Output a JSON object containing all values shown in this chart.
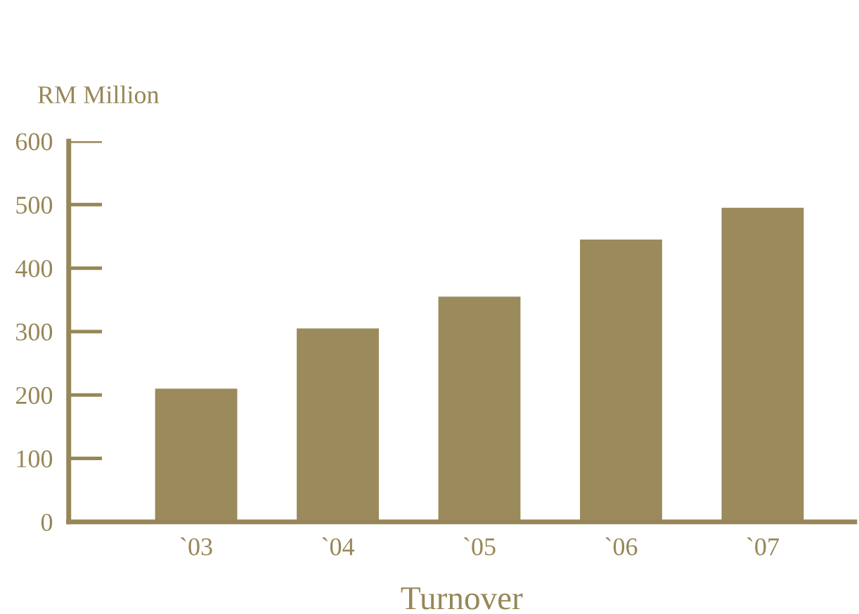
{
  "chart_data": {
    "type": "bar",
    "title": "Turnover",
    "ylabel": "RM Million",
    "categories": [
      "`03",
      "`04",
      "`05",
      "`06",
      "`07"
    ],
    "values": [
      210,
      305,
      355,
      445,
      495
    ],
    "color": "#9b8a5c",
    "ylim": [
      0,
      600
    ],
    "yticks": [
      0,
      100,
      200,
      300,
      400,
      500,
      600
    ],
    "grid": false,
    "legend": false
  }
}
